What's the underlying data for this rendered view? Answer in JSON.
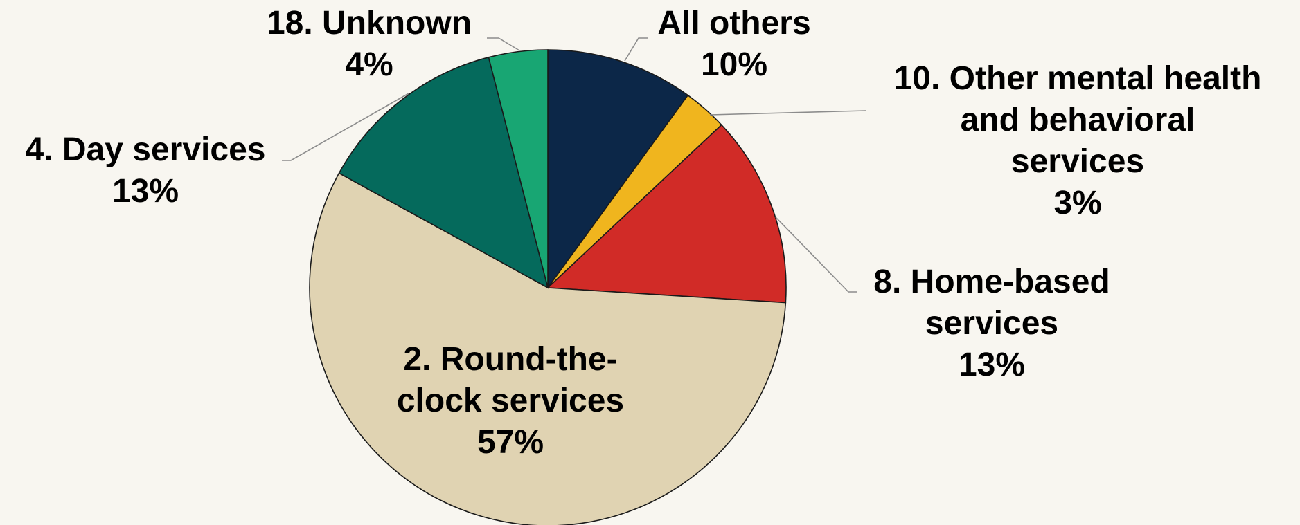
{
  "chart_data": {
    "type": "pie",
    "start_angle_deg": 0,
    "direction": "clockwise",
    "legend": "none",
    "slices": [
      {
        "label": "All others",
        "value": 10,
        "value_label": "10%",
        "color": "#0c2748"
      },
      {
        "label": "10. Other mental health and behavioral services",
        "value": 3,
        "value_label": "3%",
        "color": "#f0b51e"
      },
      {
        "label": "8. Home-based services",
        "value": 13,
        "value_label": "13%",
        "color": "#d12b27"
      },
      {
        "label": "2. Round-the-clock services",
        "value": 57,
        "value_label": "57%",
        "color": "#e0d3b2"
      },
      {
        "label": "4. Day services",
        "value": 13,
        "value_label": "13%",
        "color": "#056a5c"
      },
      {
        "label": "18. Unknown",
        "value": 4,
        "value_label": "4%",
        "color": "#18a673"
      }
    ]
  }
}
